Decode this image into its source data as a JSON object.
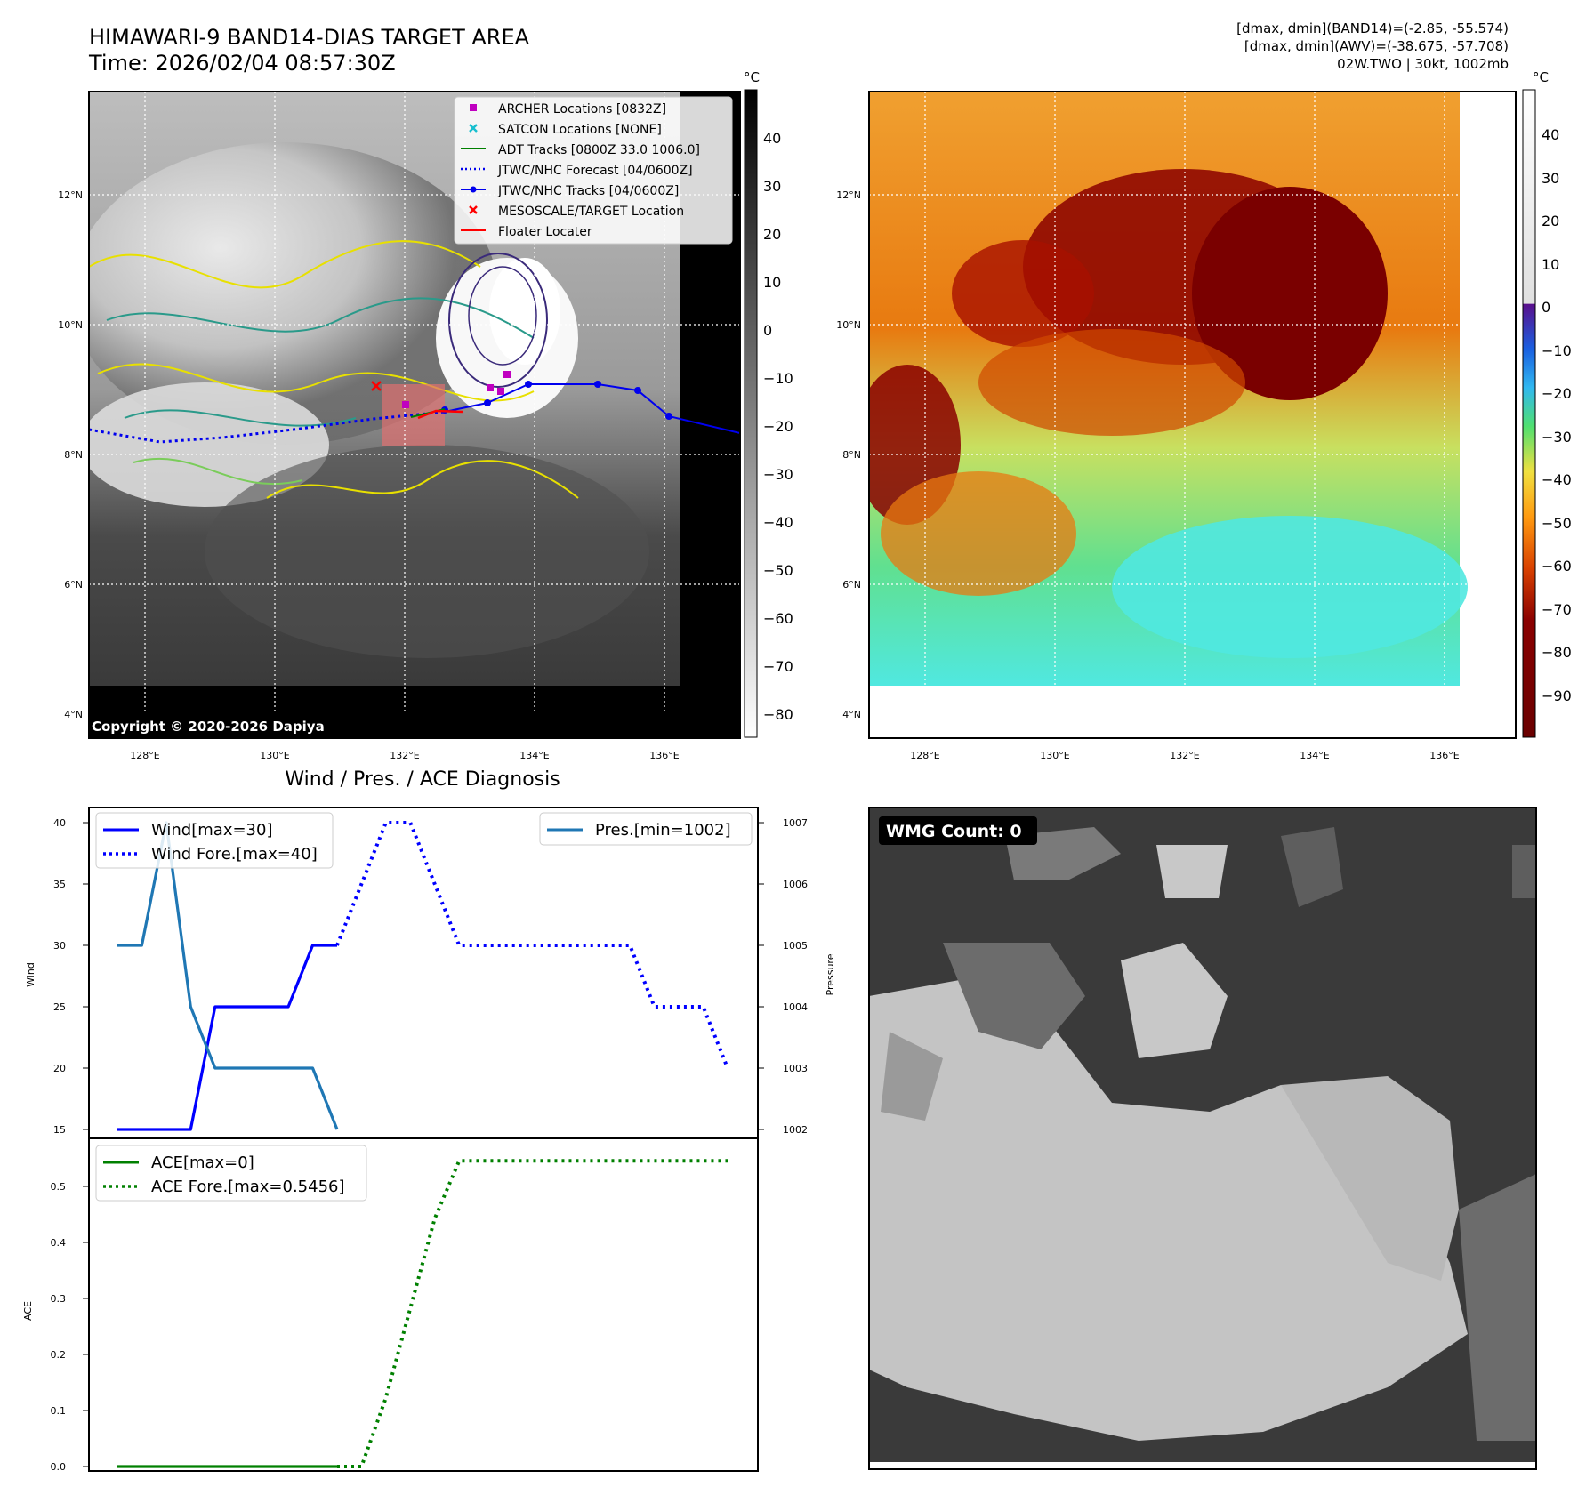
{
  "header": {
    "title": "HIMAWARI-9 BAND14-DIAS TARGET AREA",
    "time": "Time: 2026/02/04 08:57:30Z",
    "info": [
      "[dmax, dmin](BAND14)=(-2.85, -55.574)",
      "[dmax, dmin](AWV)=(-38.675, -57.708)",
      "02W.TWO | 30kt, 1002mb"
    ]
  },
  "maps": {
    "lon_ticks": [
      "128°E",
      "130°E",
      "132°E",
      "134°E",
      "136°E"
    ],
    "lat_ticks": [
      "12°N",
      "10°N",
      "8°N",
      "6°N",
      "4°N"
    ],
    "copyright": "Copyright © 2020-2026 Dapiya",
    "colorbar_unit": "°C",
    "colorbar_ticks_left": [
      "40",
      "30",
      "20",
      "10",
      "0",
      "−10",
      "−20",
      "−30",
      "−40",
      "−50",
      "−60",
      "−70",
      "−80"
    ],
    "colorbar_ticks_right": [
      "40",
      "30",
      "20",
      "10",
      "0",
      "−10",
      "−20",
      "−30",
      "−40",
      "−50",
      "−60",
      "−70",
      "−80",
      "−90"
    ],
    "legend": [
      {
        "label": "ARCHER Locations [0832Z]",
        "marker": "square",
        "color": "#c000c0"
      },
      {
        "label": "SATCON Locations [NONE]",
        "marker": "x",
        "color": "#17becf"
      },
      {
        "label": "ADT Tracks [0800Z 33.0 1006.0]",
        "marker": "line",
        "color": "#008000"
      },
      {
        "label": "JTWC/NHC Forecast [04/0600Z]",
        "marker": "dotted",
        "color": "#0000ee"
      },
      {
        "label": "JTWC/NHC Tracks [04/0600Z]",
        "marker": "line-dot",
        "color": "#0000ee"
      },
      {
        "label": "MESOSCALE/TARGET Location",
        "marker": "x",
        "color": "#ff0000"
      },
      {
        "label": "Floater Locater",
        "marker": "line",
        "color": "#ff0000"
      }
    ]
  },
  "diagnosis": {
    "title": "Wind / Pres. / ACE Diagnosis",
    "wind_label": "Wind",
    "pressure_label": "Pressure",
    "ace_label": "ACE",
    "wind_ticks": [
      "40",
      "35",
      "30",
      "25",
      "20",
      "15"
    ],
    "pressure_ticks": [
      "1007",
      "1006",
      "1005",
      "1004",
      "1003",
      "1002"
    ],
    "ace_ticks": [
      "0.5",
      "0.4",
      "0.3",
      "0.2",
      "0.1",
      "0.0"
    ],
    "legend_wind": [
      "Wind[max=30]",
      "Wind Fore.[max=40]"
    ],
    "legend_pres": [
      "Pres.[min=1002]"
    ],
    "legend_ace": [
      "ACE[max=0]",
      "ACE Fore.[max=0.5456]"
    ]
  },
  "wmg": {
    "label": "WMG Count: 0"
  },
  "chart_data": [
    {
      "type": "line",
      "title": "Wind / Pres. / ACE Diagnosis",
      "ylabel": "Wind",
      "ylim": [
        14,
        41
      ],
      "x": [
        0,
        1,
        2,
        3,
        4,
        5,
        6,
        7,
        8,
        9,
        10,
        11,
        12,
        13,
        14,
        15,
        16,
        17,
        18,
        19,
        20,
        21,
        22,
        23,
        24,
        25
      ],
      "series": [
        {
          "name": "Wind[max=30]",
          "color": "#0000ff",
          "style": "solid",
          "values": [
            15,
            15,
            15,
            15,
            25,
            25,
            25,
            25,
            30,
            30,
            null,
            null,
            null,
            null,
            null,
            null,
            null,
            null,
            null,
            null,
            null,
            null,
            null,
            null,
            null,
            null
          ]
        },
        {
          "name": "Wind Fore.[max=40]",
          "color": "#0000ff",
          "style": "dotted",
          "values": [
            null,
            null,
            null,
            null,
            null,
            null,
            null,
            null,
            null,
            30,
            35,
            40,
            40,
            35,
            30,
            30,
            30,
            30,
            30,
            30,
            30,
            30,
            25,
            25,
            25,
            20
          ]
        },
        {
          "name": "Pres.[min=1002]",
          "axis": "right",
          "color": "#1f77b4",
          "style": "solid",
          "values": [
            1005,
            1005,
            1007,
            1004,
            1003,
            1003,
            1003,
            1003,
            1003,
            1002,
            null,
            null,
            null,
            null,
            null,
            null,
            null,
            null,
            null,
            null,
            null,
            null,
            null,
            null,
            null,
            null
          ]
        }
      ],
      "y2label": "Pressure",
      "y2lim": [
        1001.8,
        1007.2
      ]
    },
    {
      "type": "line",
      "ylabel": "ACE",
      "ylim": [
        -0.02,
        0.56
      ],
      "x": [
        0,
        1,
        2,
        3,
        4,
        5,
        6,
        7,
        8,
        9,
        10,
        11,
        12,
        13,
        14,
        15,
        16,
        17,
        18,
        19,
        20,
        21,
        22,
        23,
        24,
        25
      ],
      "series": [
        {
          "name": "ACE[max=0]",
          "color": "#008000",
          "style": "solid",
          "values": [
            0,
            0,
            0,
            0,
            0,
            0,
            0,
            0,
            0,
            0,
            null,
            null,
            null,
            null,
            null,
            null,
            null,
            null,
            null,
            null,
            null,
            null,
            null,
            null,
            null,
            null
          ]
        },
        {
          "name": "ACE Fore.[max=0.5456]",
          "color": "#008000",
          "style": "dotted",
          "values": [
            null,
            null,
            null,
            null,
            null,
            null,
            null,
            null,
            null,
            0,
            0,
            0.1225,
            0.2825,
            0.4425,
            0.5456,
            0.5456,
            0.5456,
            0.5456,
            0.5456,
            0.5456,
            0.5456,
            0.5456,
            0.5456,
            0.5456,
            0.5456,
            0.5456
          ]
        }
      ]
    }
  ]
}
